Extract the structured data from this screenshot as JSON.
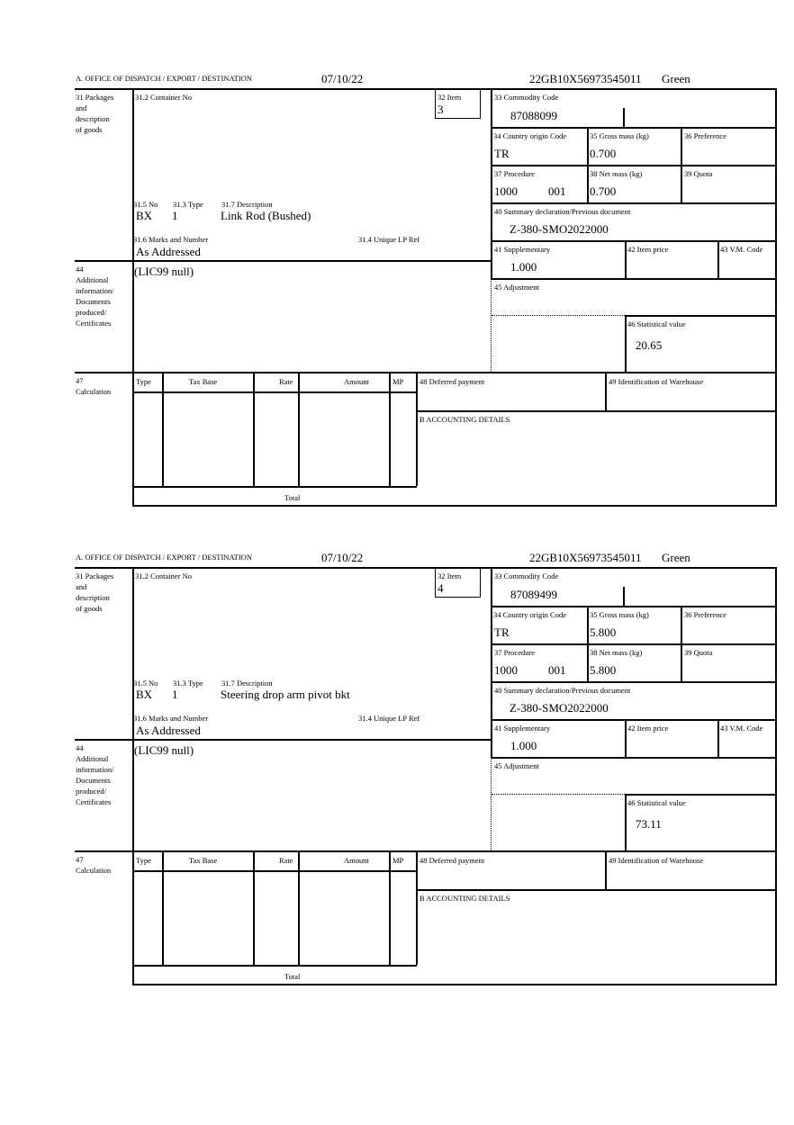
{
  "labels": {
    "office": "A. OFFICE OF DISPATCH / EXPORT / DESTINATION",
    "packages": [
      "31 Packages",
      "and",
      "description",
      "of goods"
    ],
    "container": "31.2 Container No",
    "item": "32 Item",
    "no": "31.5 No",
    "type": "31.3 Type",
    "description": "31.7 Description",
    "marks": "31.6 Marks and Number",
    "unique_ref": "31.4 Unique LP Ref",
    "commodity": "33 Commodity Code",
    "country": "34 Country origin Code",
    "gross": "35 Gross mass (kg)",
    "preference": "36 Preference",
    "procedure": "37 Procedure",
    "net": "38 Net mass (kg)",
    "quota": "39 Quota",
    "summary": "40 Summary declaration/Previous document",
    "supplementary": "41 Supplementary",
    "item_price": "42 Item price",
    "vm_code": "43 V.M. Code",
    "additional": [
      "44",
      "Additional",
      "information/",
      "Documents",
      "produced/",
      "Certificates"
    ],
    "adjustment": "45 Adjustment",
    "statistical": "46 Statistical value",
    "calculation": [
      "47",
      "Calculation"
    ],
    "calc_cols": [
      "Type",
      "Tax Base",
      "Rate",
      "Amount",
      "MP"
    ],
    "total": "Total",
    "deferred": "48 Deferred payment",
    "warehouse": "49 Identification of Warehouse",
    "accounting": "B ACCOUNTING DETAILS"
  },
  "forms": [
    {
      "date": "07/10/22",
      "reference": "22GB10X56973545011",
      "status": "Green",
      "item": "3",
      "no": "BX",
      "type": "1",
      "description": "Link Rod (Bushed)",
      "marks": "As Addressed",
      "commodity": "87088099",
      "country": "TR",
      "gross": "0.700",
      "procedure": "1000",
      "procedure_add": "001",
      "net": "0.700",
      "summary": "Z-380-SMO2022000",
      "supplementary": "1.000",
      "additional": "(LIC99 null)",
      "statistical": "20.65"
    },
    {
      "date": "07/10/22",
      "reference": "22GB10X56973545011",
      "status": "Green",
      "item": "4",
      "no": "BX",
      "type": "1",
      "description": "Steering drop arm pivot bkt",
      "marks": "As Addressed",
      "commodity": "87089499",
      "country": "TR",
      "gross": "5.800",
      "procedure": "1000",
      "procedure_add": "001",
      "net": "5.800",
      "summary": "Z-380-SMO2022000",
      "supplementary": "1.000",
      "additional": "(LIC99 null)",
      "statistical": "73.11"
    }
  ]
}
